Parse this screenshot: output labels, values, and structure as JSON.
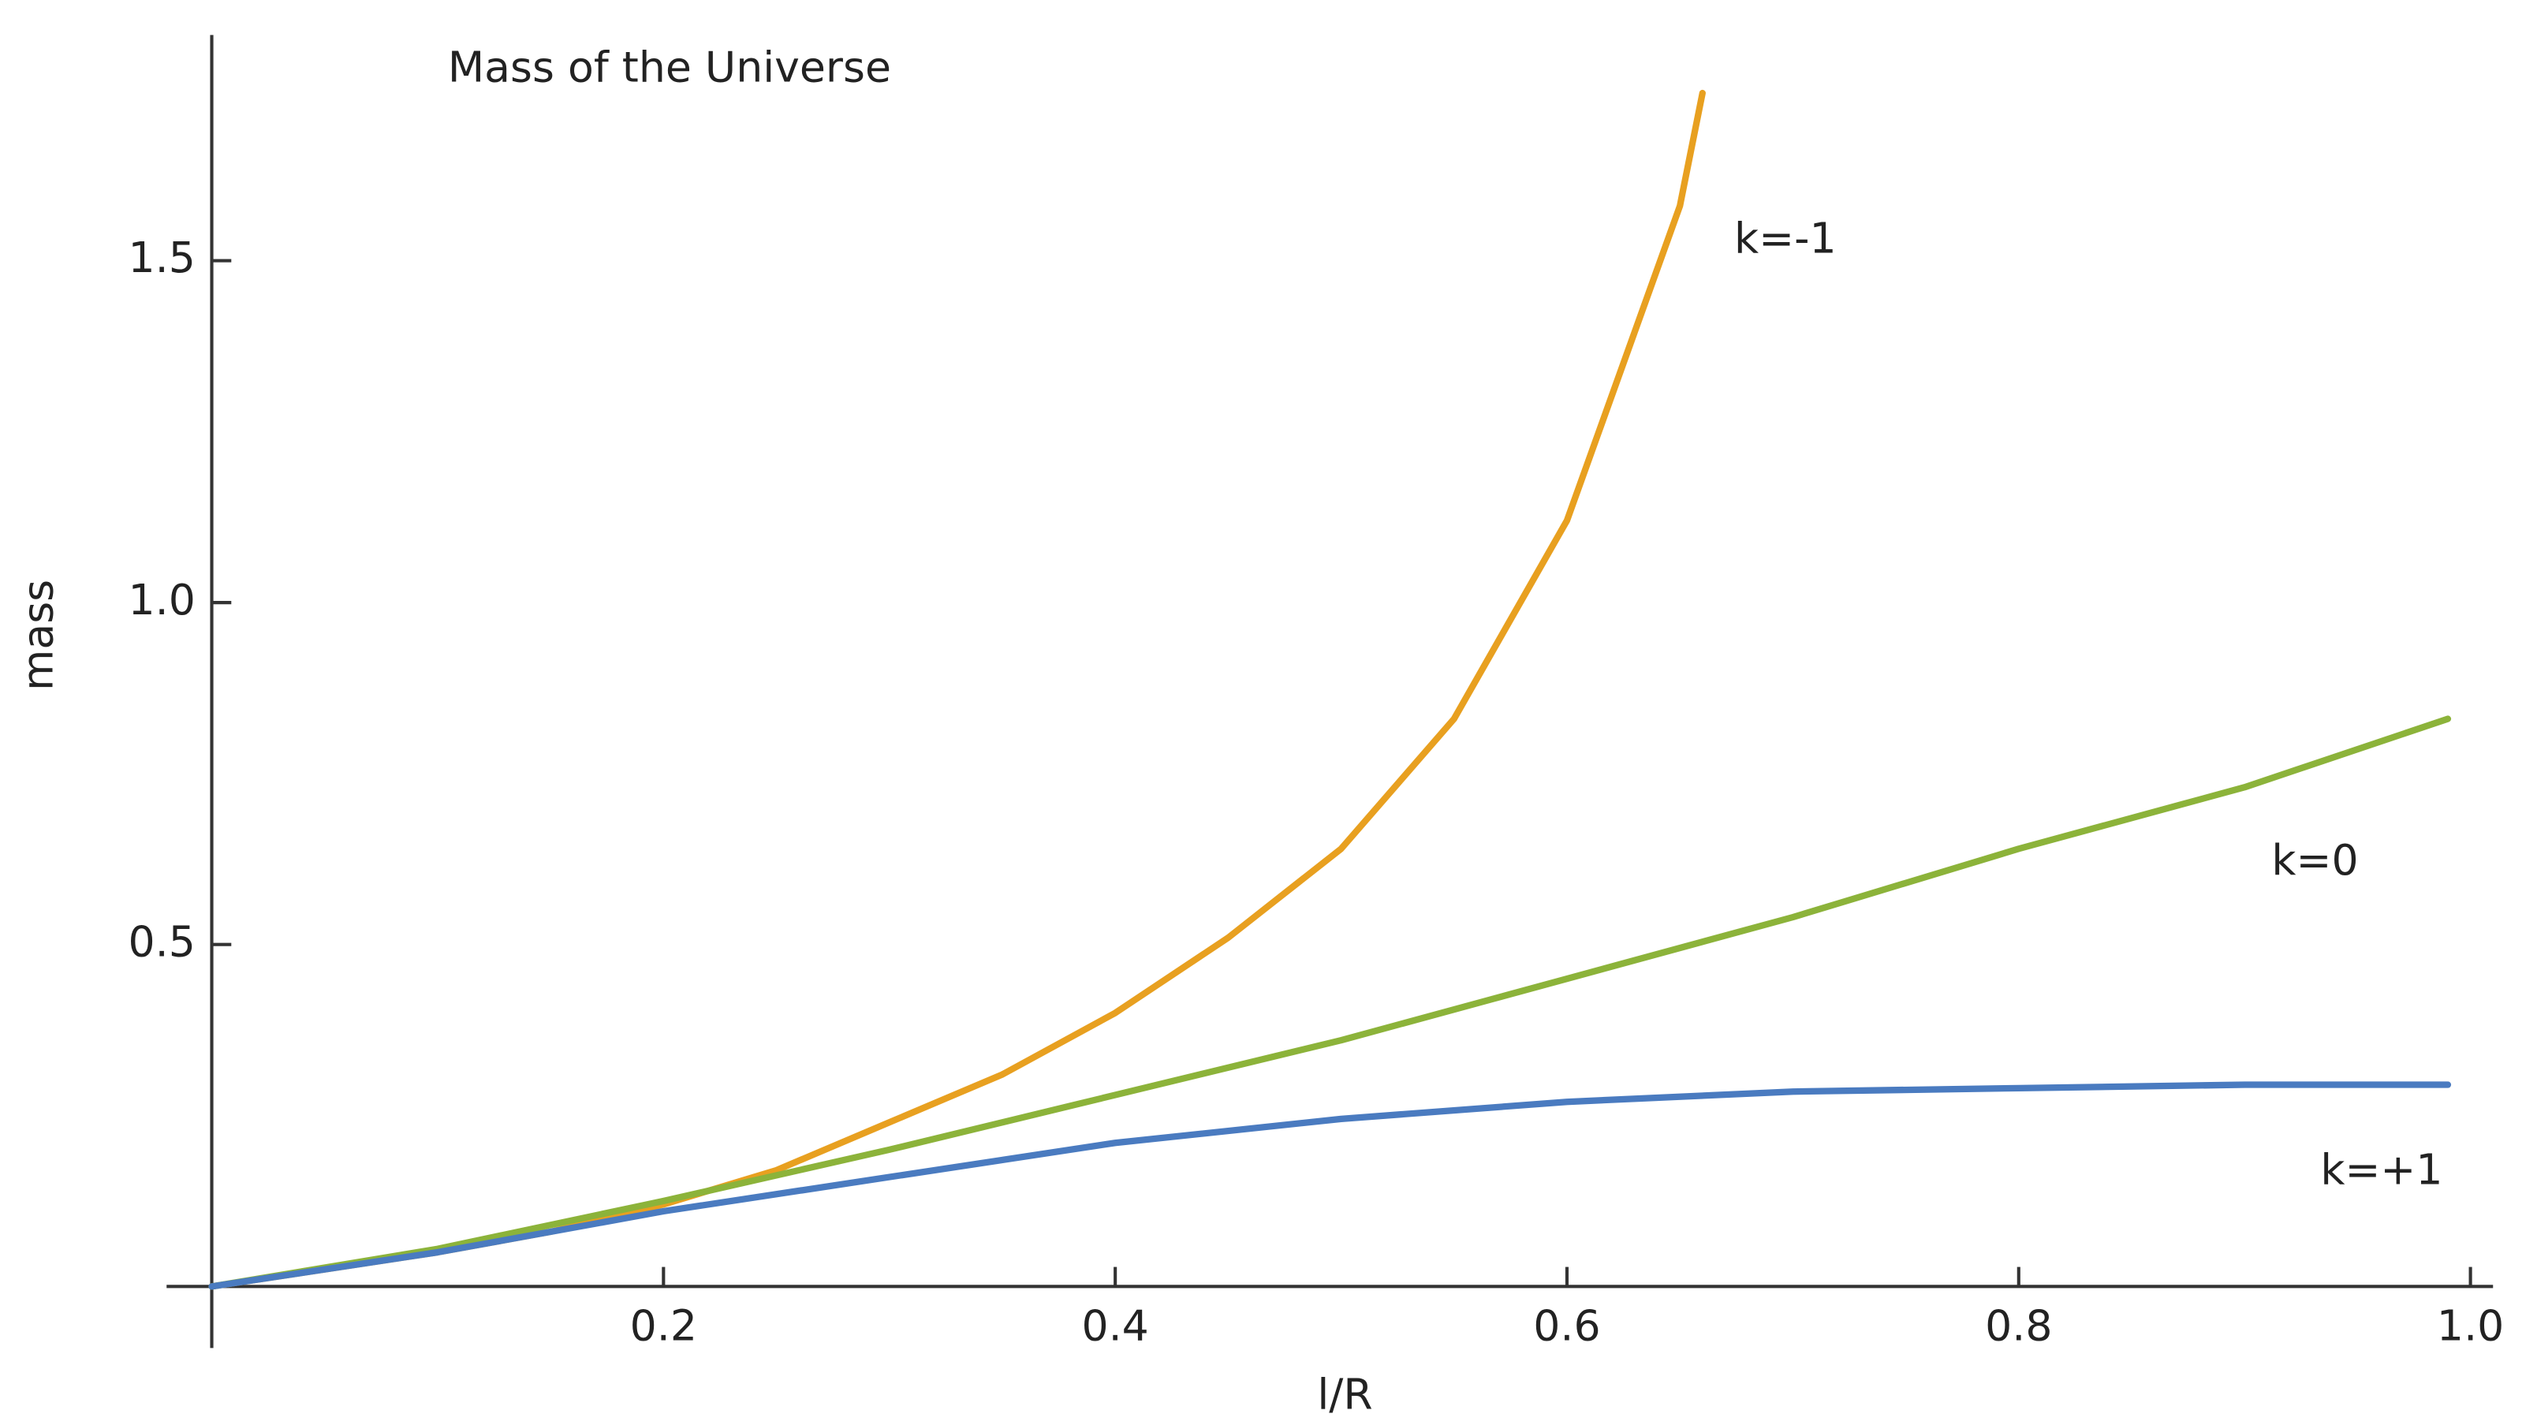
{
  "chart_data": {
    "type": "line",
    "title": "Mass of the Universe",
    "x_label": "l/R",
    "y_label": "mass",
    "series": [
      {
        "name": "k=-1",
        "color": "#e8a020",
        "x": [
          0,
          0.05,
          0.1,
          0.15,
          0.2,
          0.25,
          0.3,
          0.35,
          0.4,
          0.45,
          0.5,
          0.55,
          0.6,
          0.65,
          0.66
        ],
        "values": [
          0,
          0.025,
          0.05,
          0.08,
          0.12,
          0.17,
          0.24,
          0.31,
          0.4,
          0.51,
          0.64,
          0.83,
          1.12,
          1.58,
          1.745
        ]
      },
      {
        "name": "k=0",
        "color": "#8cb33a",
        "x": [
          0,
          0.1,
          0.2,
          0.3,
          0.4,
          0.5,
          0.6,
          0.7,
          0.8,
          0.9,
          0.99
        ],
        "values": [
          0,
          0.055,
          0.125,
          0.2,
          0.28,
          0.36,
          0.45,
          0.54,
          0.64,
          0.73,
          0.83
        ]
      },
      {
        "name": "k=+1",
        "color": "#4a7bc0",
        "x": [
          0,
          0.1,
          0.2,
          0.3,
          0.4,
          0.5,
          0.6,
          0.7,
          0.8,
          0.9,
          0.99
        ],
        "values": [
          0,
          0.05,
          0.11,
          0.16,
          0.21,
          0.245,
          0.27,
          0.285,
          0.29,
          0.295,
          0.295
        ]
      }
    ],
    "xlim": [
      -0.02,
      1.01
    ],
    "ylim": [
      -0.09,
      1.83
    ],
    "xticks": [
      0.2,
      0.4,
      0.6,
      0.8,
      {
        "value": 1,
        "label": "1.0"
      }
    ],
    "yticks": [
      0.5,
      {
        "value": 1,
        "label": "1.0"
      },
      1.5
    ],
    "grid": false
  }
}
